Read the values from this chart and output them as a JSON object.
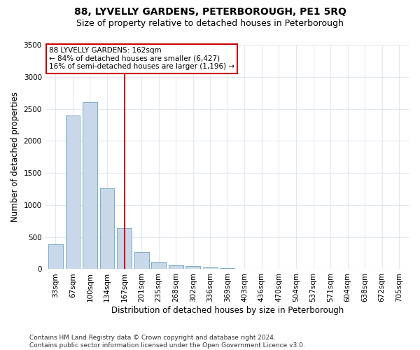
{
  "title": "88, LYVELLY GARDENS, PETERBOROUGH, PE1 5RQ",
  "subtitle": "Size of property relative to detached houses in Peterborough",
  "xlabel": "Distribution of detached houses by size in Peterborough",
  "ylabel": "Number of detached properties",
  "categories": [
    "33sqm",
    "67sqm",
    "100sqm",
    "134sqm",
    "167sqm",
    "201sqm",
    "235sqm",
    "268sqm",
    "302sqm",
    "336sqm",
    "369sqm",
    "403sqm",
    "436sqm",
    "470sqm",
    "504sqm",
    "537sqm",
    "571sqm",
    "604sqm",
    "638sqm",
    "672sqm",
    "705sqm"
  ],
  "values": [
    390,
    2400,
    2600,
    1260,
    640,
    270,
    110,
    60,
    45,
    30,
    20,
    5,
    5,
    5,
    5,
    5,
    5,
    5,
    5,
    5,
    5
  ],
  "bar_color": "#c8d8ea",
  "bar_edge_color": "#7aaac8",
  "reference_line_x": 4.0,
  "reference_line_color": "#cc0000",
  "annotation_text": "88 LYVELLY GARDENS: 162sqm\n← 84% of detached houses are smaller (6,427)\n16% of semi-detached houses are larger (1,196) →",
  "annotation_box_facecolor": "#ffffff",
  "annotation_box_edgecolor": "#cc0000",
  "ylim": [
    0,
    3500
  ],
  "yticks": [
    0,
    500,
    1000,
    1500,
    2000,
    2500,
    3000,
    3500
  ],
  "bg_color": "#ffffff",
  "plot_bg_color": "#ffffff",
  "grid_color": "#e0e8f0",
  "title_fontsize": 10,
  "subtitle_fontsize": 9,
  "axis_label_fontsize": 8.5,
  "tick_fontsize": 7.5,
  "annotation_fontsize": 7.5,
  "footer_fontsize": 6.5,
  "footer": "Contains HM Land Registry data © Crown copyright and database right 2024.\nContains public sector information licensed under the Open Government Licence v3.0."
}
